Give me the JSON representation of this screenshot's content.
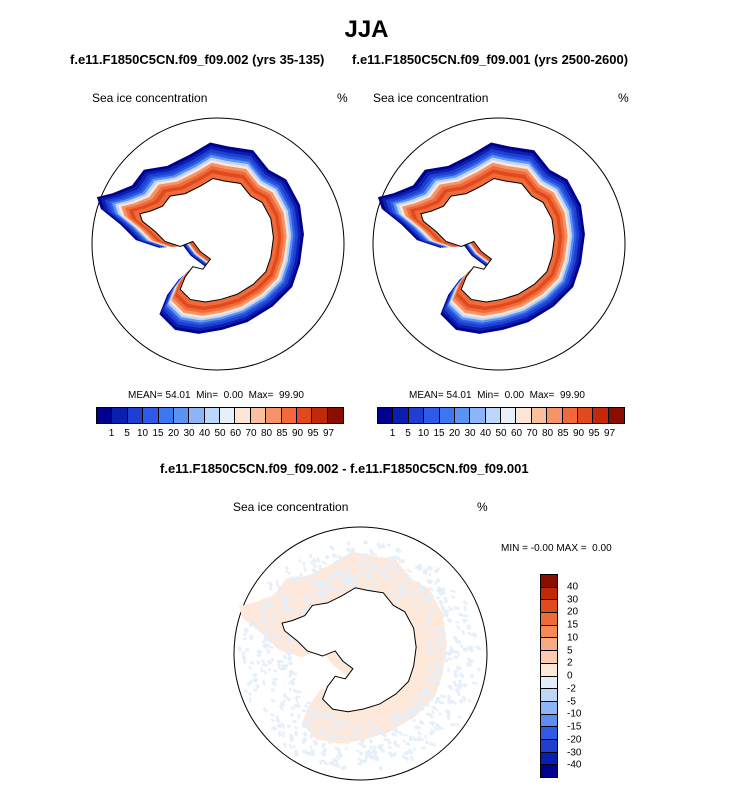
{
  "figure": {
    "title": "JJA"
  },
  "panel_left": {
    "case_title": "f.e11.F1850C5CN.f09_f09.002 (yrs 35-135)",
    "left_label": "Sea ice concentration",
    "right_label": "%",
    "stats": {
      "mean_label": "MEAN=",
      "mean": "54.01",
      "min_label": "Min=",
      "min": "0.00",
      "max_label": "Max=",
      "max": "99.90"
    }
  },
  "panel_right": {
    "case_title": "f.e11.F1850C5CN.f09_f09.001 (yrs 2500-2600)",
    "left_label": "Sea ice concentration",
    "right_label": "%",
    "stats": {
      "mean_label": "MEAN=",
      "mean": "54.01",
      "min_label": "Min=",
      "min": "0.00",
      "max_label": "Max=",
      "max": "99.90"
    }
  },
  "panel_diff": {
    "case_title": "f.e11.F1850C5CN.f09_f09.002 - f.e11.F1850C5CN.f09_f09.001",
    "left_label": "Sea ice concentration",
    "right_label": "%",
    "minmax": {
      "min_label": "MIN =",
      "min": "-0.00",
      "max_label": "MAX =",
      "max": "0.00"
    }
  },
  "chart_data": [
    {
      "type": "heatmap",
      "title": "f.e11.F1850C5CN.f09_f09.002 (yrs 35-135)",
      "variable": "Sea ice concentration",
      "units": "%",
      "projection": "south polar stereographic",
      "colorbar": {
        "levels": [
          "1",
          "5",
          "10",
          "15",
          "20",
          "30",
          "40",
          "50",
          "60",
          "70",
          "80",
          "85",
          "90",
          "95",
          "97"
        ],
        "colors": [
          "#00008f",
          "#0a1fb0",
          "#1f3fd0",
          "#2d5ae6",
          "#3c76f0",
          "#5c92f2",
          "#8cb4f6",
          "#bcd6fa",
          "#e6f0fb",
          "#fde6d6",
          "#f9c0a0",
          "#f59468",
          "#f06a3a",
          "#e04a1e",
          "#c02a08",
          "#8a0e00"
        ]
      },
      "stats": {
        "mean": 54.01,
        "min": 0.0,
        "max": 99.9
      }
    },
    {
      "type": "heatmap",
      "title": "f.e11.F1850C5CN.f09_f09.001 (yrs 2500-2600)",
      "variable": "Sea ice concentration",
      "units": "%",
      "projection": "south polar stereographic",
      "colorbar": {
        "levels": [
          "1",
          "5",
          "10",
          "15",
          "20",
          "30",
          "40",
          "50",
          "60",
          "70",
          "80",
          "85",
          "90",
          "95",
          "97"
        ],
        "colors": [
          "#00008f",
          "#0a1fb0",
          "#1f3fd0",
          "#2d5ae6",
          "#3c76f0",
          "#5c92f2",
          "#8cb4f6",
          "#bcd6fa",
          "#e6f0fb",
          "#fde6d6",
          "#f9c0a0",
          "#f59468",
          "#f06a3a",
          "#e04a1e",
          "#c02a08",
          "#8a0e00"
        ]
      },
      "stats": {
        "mean": 54.01,
        "min": 0.0,
        "max": 99.9
      }
    },
    {
      "type": "heatmap",
      "title": "f.e11.F1850C5CN.f09_f09.002 - f.e11.F1850C5CN.f09_f09.001",
      "variable": "Sea ice concentration",
      "units": "%",
      "projection": "south polar stereographic",
      "colorbar": {
        "levels": [
          "40",
          "30",
          "20",
          "15",
          "10",
          "5",
          "2",
          "0",
          "-2",
          "-5",
          "-10",
          "-15",
          "-20",
          "-30",
          "-40"
        ],
        "colors": [
          "#8a0e00",
          "#c02a08",
          "#e04a1e",
          "#f06a3a",
          "#f58a58",
          "#f8aa82",
          "#fcccb0",
          "#fde8da",
          "#e4eefa",
          "#c0d6f8",
          "#8cb4f6",
          "#5c8ef2",
          "#2d5ae6",
          "#1f3fd0",
          "#0a1fb0",
          "#00008f"
        ]
      },
      "stats": {
        "min": -0.0,
        "max": 0.0
      }
    }
  ]
}
